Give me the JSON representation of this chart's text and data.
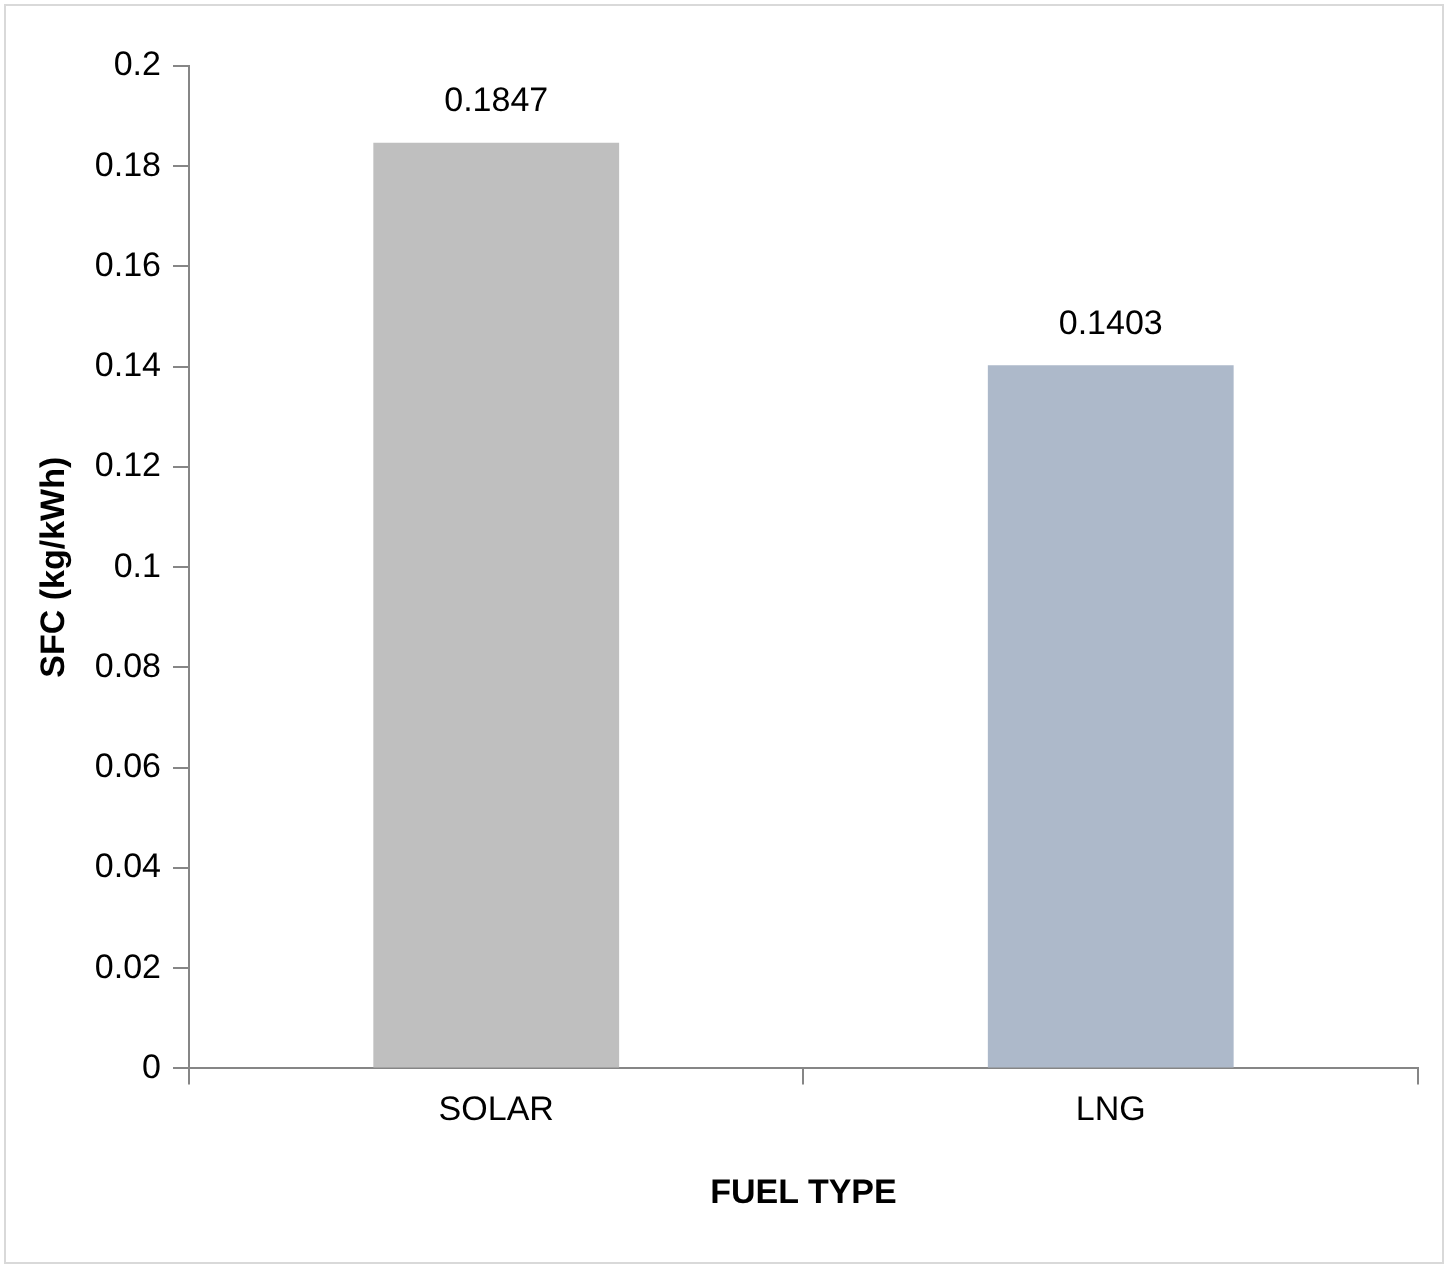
{
  "chart_data": {
    "type": "bar",
    "xlabel": "FUEL TYPE",
    "ylabel": "SFC (kg/kWh)",
    "categories": [
      "SOLAR",
      "LNG"
    ],
    "values": [
      0.1847,
      0.1403
    ],
    "colors": [
      "#bfbfbf",
      "#adb9ca"
    ],
    "ylim": [
      0,
      0.2
    ],
    "yticks": [
      0,
      0.02,
      0.04,
      0.06,
      0.08,
      0.1,
      0.12,
      0.14,
      0.16,
      0.18,
      0.2
    ],
    "grid": false,
    "legend": false,
    "data_labels": true
  }
}
